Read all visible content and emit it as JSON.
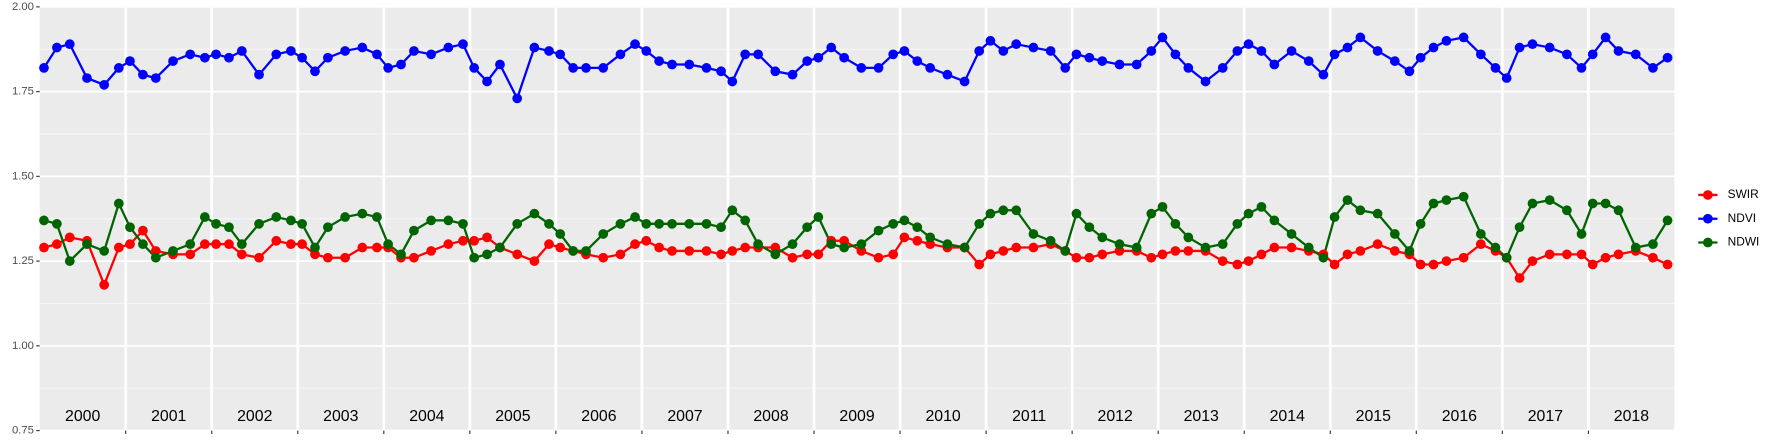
{
  "chart_data": {
    "type": "line",
    "x": [
      2000.05,
      2000.2,
      2000.35,
      2000.55,
      2000.75,
      2000.92,
      2001.05,
      2001.2,
      2001.35,
      2001.55,
      2001.75,
      2001.92,
      2002.05,
      2002.2,
      2002.35,
      2002.55,
      2002.75,
      2002.92,
      2003.05,
      2003.2,
      2003.35,
      2003.55,
      2003.75,
      2003.92,
      2004.05,
      2004.2,
      2004.35,
      2004.55,
      2004.75,
      2004.92,
      2005.05,
      2005.2,
      2005.35,
      2005.55,
      2005.75,
      2005.92,
      2006.05,
      2006.2,
      2006.35,
      2006.55,
      2006.75,
      2006.92,
      2007.05,
      2007.2,
      2007.35,
      2007.55,
      2007.75,
      2007.92,
      2008.05,
      2008.2,
      2008.35,
      2008.55,
      2008.75,
      2008.92,
      2009.05,
      2009.2,
      2009.35,
      2009.55,
      2009.75,
      2009.92,
      2010.05,
      2010.2,
      2010.35,
      2010.55,
      2010.75,
      2010.92,
      2011.05,
      2011.2,
      2011.35,
      2011.55,
      2011.75,
      2011.92,
      2012.05,
      2012.2,
      2012.35,
      2012.55,
      2012.75,
      2012.92,
      2013.05,
      2013.2,
      2013.35,
      2013.55,
      2013.75,
      2013.92,
      2014.05,
      2014.2,
      2014.35,
      2014.55,
      2014.75,
      2014.92,
      2015.05,
      2015.2,
      2015.35,
      2015.55,
      2015.75,
      2015.92,
      2016.05,
      2016.2,
      2016.35,
      2016.55,
      2016.75,
      2016.92,
      2017.05,
      2017.2,
      2017.35,
      2017.55,
      2017.75,
      2017.92,
      2018.05,
      2018.2,
      2018.35,
      2018.55,
      2018.75,
      2018.92
    ],
    "series": [
      {
        "name": "SWIR",
        "color": "#ff0000",
        "values": [
          1.29,
          1.3,
          1.32,
          1.31,
          1.18,
          1.29,
          1.3,
          1.34,
          1.28,
          1.27,
          1.27,
          1.3,
          1.3,
          1.3,
          1.27,
          1.26,
          1.31,
          1.3,
          1.3,
          1.27,
          1.26,
          1.26,
          1.29,
          1.29,
          1.29,
          1.26,
          1.26,
          1.28,
          1.3,
          1.31,
          1.31,
          1.32,
          1.29,
          1.27,
          1.25,
          1.3,
          1.29,
          1.28,
          1.27,
          1.26,
          1.27,
          1.3,
          1.31,
          1.29,
          1.28,
          1.28,
          1.28,
          1.27,
          1.28,
          1.29,
          1.29,
          1.29,
          1.26,
          1.27,
          1.27,
          1.31,
          1.31,
          1.28,
          1.26,
          1.27,
          1.32,
          1.31,
          1.3,
          1.29,
          1.29,
          1.24,
          1.27,
          1.28,
          1.29,
          1.29,
          1.3,
          1.28,
          1.26,
          1.26,
          1.27,
          1.28,
          1.28,
          1.26,
          1.27,
          1.28,
          1.28,
          1.28,
          1.25,
          1.24,
          1.25,
          1.27,
          1.29,
          1.29,
          1.28,
          1.27,
          1.24,
          1.27,
          1.28,
          1.3,
          1.28,
          1.27,
          1.24,
          1.24,
          1.25,
          1.26,
          1.3,
          1.28,
          1.26,
          1.2,
          1.25,
          1.27,
          1.27,
          1.27,
          1.24,
          1.26,
          1.27,
          1.28,
          1.26,
          1.24
        ]
      },
      {
        "name": "NDVI",
        "color": "#0000ff",
        "values": [
          1.82,
          1.88,
          1.89,
          1.79,
          1.77,
          1.82,
          1.84,
          1.8,
          1.79,
          1.84,
          1.86,
          1.85,
          1.86,
          1.85,
          1.87,
          1.8,
          1.86,
          1.87,
          1.85,
          1.81,
          1.85,
          1.87,
          1.88,
          1.86,
          1.82,
          1.83,
          1.87,
          1.86,
          1.88,
          1.89,
          1.82,
          1.78,
          1.83,
          1.73,
          1.88,
          1.87,
          1.86,
          1.82,
          1.82,
          1.82,
          1.86,
          1.89,
          1.87,
          1.84,
          1.83,
          1.83,
          1.82,
          1.81,
          1.78,
          1.86,
          1.86,
          1.81,
          1.8,
          1.84,
          1.85,
          1.88,
          1.85,
          1.82,
          1.82,
          1.86,
          1.87,
          1.84,
          1.82,
          1.8,
          1.78,
          1.87,
          1.9,
          1.87,
          1.89,
          1.88,
          1.87,
          1.82,
          1.86,
          1.85,
          1.84,
          1.83,
          1.83,
          1.87,
          1.91,
          1.86,
          1.82,
          1.78,
          1.82,
          1.87,
          1.89,
          1.87,
          1.83,
          1.87,
          1.84,
          1.8,
          1.86,
          1.88,
          1.91,
          1.87,
          1.84,
          1.81,
          1.85,
          1.88,
          1.9,
          1.91,
          1.86,
          1.82,
          1.79,
          1.88,
          1.89,
          1.88,
          1.86,
          1.82,
          1.86,
          1.91,
          1.87,
          1.86,
          1.82,
          1.85
        ]
      },
      {
        "name": "NDWI",
        "color": "#006400",
        "values": [
          1.37,
          1.36,
          1.25,
          1.3,
          1.28,
          1.42,
          1.35,
          1.3,
          1.26,
          1.28,
          1.3,
          1.38,
          1.36,
          1.35,
          1.3,
          1.36,
          1.38,
          1.37,
          1.36,
          1.29,
          1.35,
          1.38,
          1.39,
          1.38,
          1.3,
          1.27,
          1.34,
          1.37,
          1.37,
          1.36,
          1.26,
          1.27,
          1.29,
          1.36,
          1.39,
          1.36,
          1.33,
          1.28,
          1.28,
          1.33,
          1.36,
          1.38,
          1.36,
          1.36,
          1.36,
          1.36,
          1.36,
          1.35,
          1.4,
          1.37,
          1.3,
          1.27,
          1.3,
          1.35,
          1.38,
          1.3,
          1.29,
          1.3,
          1.34,
          1.36,
          1.37,
          1.35,
          1.32,
          1.3,
          1.29,
          1.36,
          1.39,
          1.4,
          1.4,
          1.33,
          1.31,
          1.28,
          1.39,
          1.35,
          1.32,
          1.3,
          1.29,
          1.39,
          1.41,
          1.36,
          1.32,
          1.29,
          1.3,
          1.36,
          1.39,
          1.41,
          1.37,
          1.33,
          1.29,
          1.26,
          1.38,
          1.43,
          1.4,
          1.39,
          1.33,
          1.28,
          1.36,
          1.42,
          1.43,
          1.44,
          1.33,
          1.29,
          1.26,
          1.35,
          1.42,
          1.43,
          1.4,
          1.33,
          1.42,
          1.42,
          1.4,
          1.29,
          1.3,
          1.37
        ]
      }
    ],
    "xlim": [
      2000,
      2019
    ],
    "xticks": [
      2001,
      2002,
      2003,
      2004,
      2005,
      2006,
      2007,
      2008,
      2009,
      2010,
      2011,
      2012,
      2013,
      2014,
      2015,
      2016,
      2017,
      2018
    ],
    "ylim": [
      0.75,
      2.0
    ],
    "yticks": [
      {
        "value": 0.75,
        "label": "0.75"
      },
      {
        "value": 1,
        "label": "1.00"
      },
      {
        "value": 1.25,
        "label": "1.25"
      },
      {
        "value": 1.5,
        "label": "1.50"
      },
      {
        "value": 1.75,
        "label": "1.75"
      },
      {
        "value": 2,
        "label": "2.00"
      }
    ],
    "grid": true,
    "legend": "right",
    "annotations": [
      {
        "text": "2000",
        "x": 2000.5,
        "y": 0.79
      },
      {
        "text": "2001",
        "x": 2001.5,
        "y": 0.79
      },
      {
        "text": "2002",
        "x": 2002.5,
        "y": 0.79
      },
      {
        "text": "2003",
        "x": 2003.5,
        "y": 0.79
      },
      {
        "text": "2004",
        "x": 2004.5,
        "y": 0.79
      },
      {
        "text": "2005",
        "x": 2005.5,
        "y": 0.79
      },
      {
        "text": "2006",
        "x": 2006.5,
        "y": 0.79
      },
      {
        "text": "2007",
        "x": 2007.5,
        "y": 0.79
      },
      {
        "text": "2008",
        "x": 2008.5,
        "y": 0.79
      },
      {
        "text": "2009",
        "x": 2009.5,
        "y": 0.79
      },
      {
        "text": "2010",
        "x": 2010.5,
        "y": 0.79
      },
      {
        "text": "2011",
        "x": 2011.5,
        "y": 0.79
      },
      {
        "text": "2012",
        "x": 2012.5,
        "y": 0.79
      },
      {
        "text": "2013",
        "x": 2013.5,
        "y": 0.79
      },
      {
        "text": "2014",
        "x": 2014.5,
        "y": 0.79
      },
      {
        "text": "2015",
        "x": 2015.5,
        "y": 0.79
      },
      {
        "text": "2016",
        "x": 2016.5,
        "y": 0.79
      },
      {
        "text": "2017",
        "x": 2017.5,
        "y": 0.79
      },
      {
        "text": "2018",
        "x": 2018.5,
        "y": 0.79
      }
    ]
  }
}
